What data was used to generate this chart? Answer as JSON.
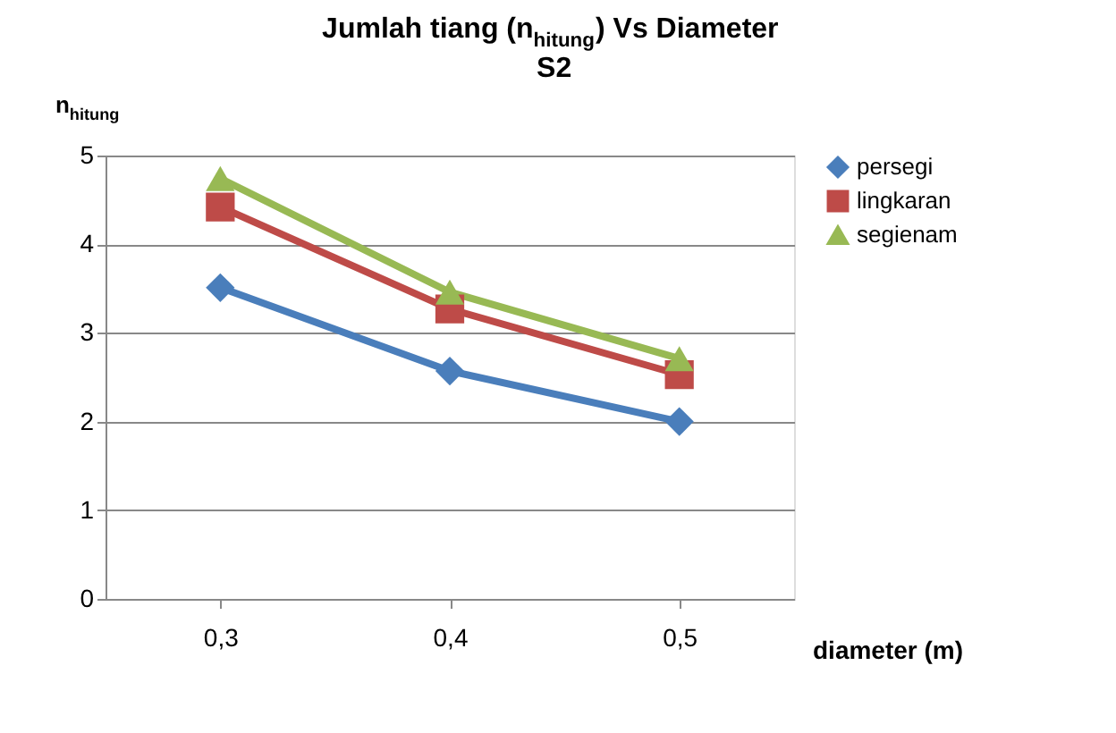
{
  "chart_data": {
    "type": "line",
    "title": "Jumlah tiang (n$_{hitung}$) Vs Diameter",
    "subtitle": "S2",
    "xlabel": "diameter (m)",
    "ylabel": "n$_{hitung}$",
    "categories": [
      "0,3",
      "0,4",
      "0,5"
    ],
    "series": [
      {
        "name": "persegi",
        "color": "#4a7ebb",
        "marker": "diamond",
        "values": [
          3.51,
          2.57,
          2.0
        ]
      },
      {
        "name": "lingkaran",
        "color": "#be4b48",
        "marker": "square",
        "values": [
          4.42,
          3.27,
          2.53
        ]
      },
      {
        "name": "segienam",
        "color": "#98b954",
        "marker": "triangle",
        "values": [
          4.74,
          3.46,
          2.71
        ]
      }
    ],
    "ylim": [
      0,
      5
    ],
    "yticks": [
      0,
      1,
      2,
      3,
      4,
      5
    ],
    "grid": "y",
    "legend": "right",
    "line_style": "solid"
  }
}
